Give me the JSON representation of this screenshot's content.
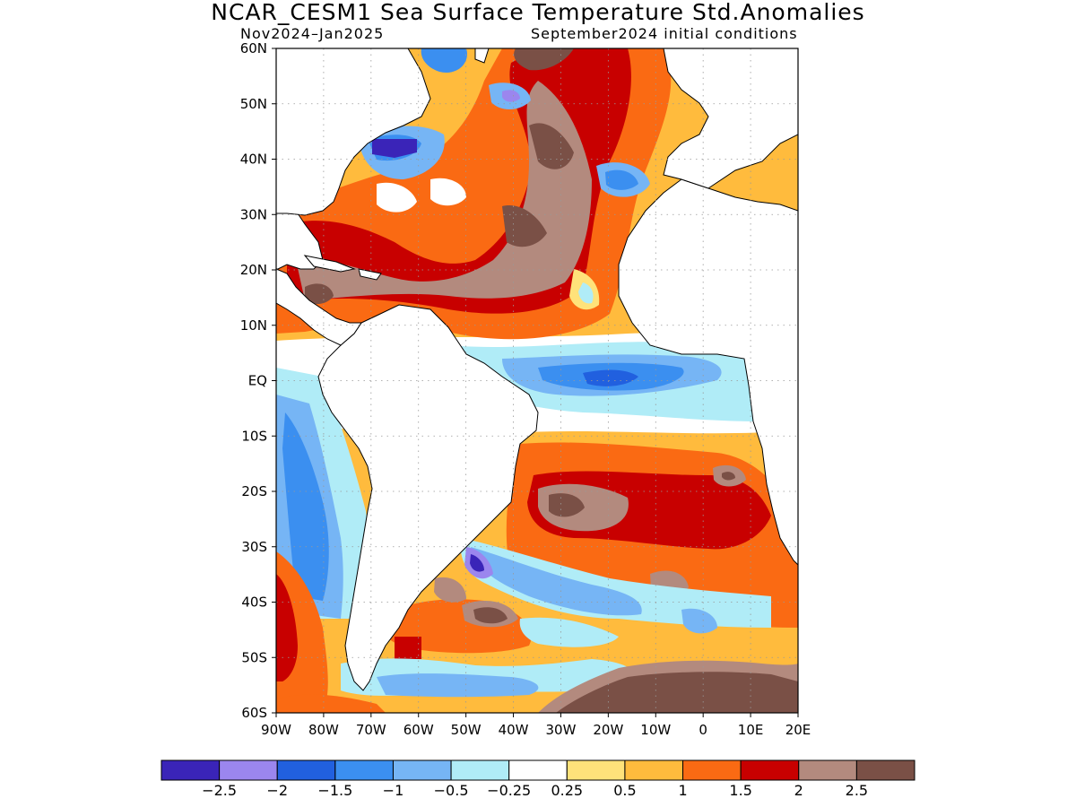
{
  "title": "NCAR_CESM1 Sea Surface Temperature Std.Anomalies",
  "subtitle_left": "Nov2024–Jan2025",
  "subtitle_right": "September2024 initial conditions",
  "map": {
    "projection": "lat-lon",
    "lon_range": [
      -90,
      20
    ],
    "lat_range": [
      -60,
      60
    ],
    "grid": "dotted",
    "lat_labels": [
      "60N",
      "50N",
      "40N",
      "30N",
      "20N",
      "10N",
      "EQ",
      "10S",
      "20S",
      "30S",
      "40S",
      "50S",
      "60S"
    ],
    "lon_labels": [
      "90W",
      "80W",
      "70W",
      "60W",
      "50W",
      "40W",
      "30W",
      "20W",
      "10W",
      "0",
      "10E",
      "20E"
    ],
    "land_color": "#ffffff",
    "coastline_color": "#000000"
  },
  "legend": {
    "colors": [
      "#3a24b8",
      "#9b86ee",
      "#2160df",
      "#3b8ff0",
      "#76b5f5",
      "#b0ecf7",
      "#ffffff",
      "#ffe27a",
      "#ffbb3d",
      "#fa6a13",
      "#c80000",
      "#b38a7e",
      "#7a5046"
    ],
    "labels": [
      "−2.5",
      "−2",
      "−1.5",
      "−1",
      "−0.5",
      "−0.25",
      "0.25",
      "0.5",
      "1",
      "1.5",
      "2",
      "2.5"
    ]
  }
}
